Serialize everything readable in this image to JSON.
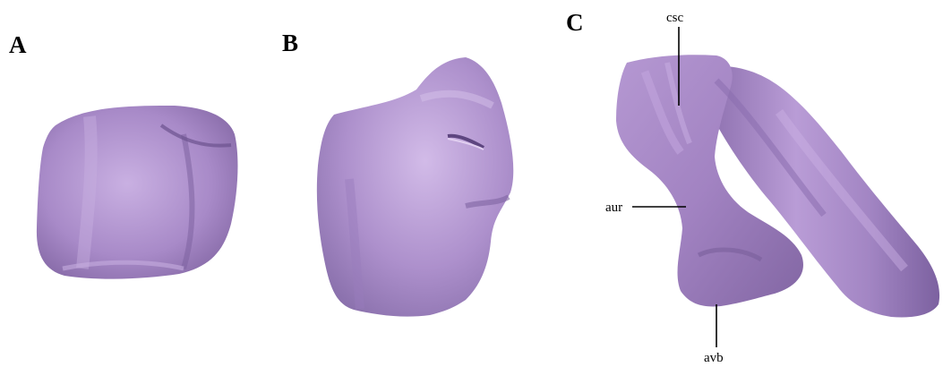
{
  "colors": {
    "background": "#ffffff",
    "bone_base": "#a98ac8",
    "bone_light": "#c7aee0",
    "bone_shadow": "#7a5f98",
    "label": "#000000"
  },
  "panels": [
    {
      "id": "A",
      "label": "A"
    },
    {
      "id": "B",
      "label": "B"
    },
    {
      "id": "C",
      "label": "C"
    }
  ],
  "annotations": [
    {
      "id": "csc",
      "text": "csc"
    },
    {
      "id": "aur",
      "text": "aur"
    },
    {
      "id": "avb",
      "text": "avb"
    }
  ]
}
